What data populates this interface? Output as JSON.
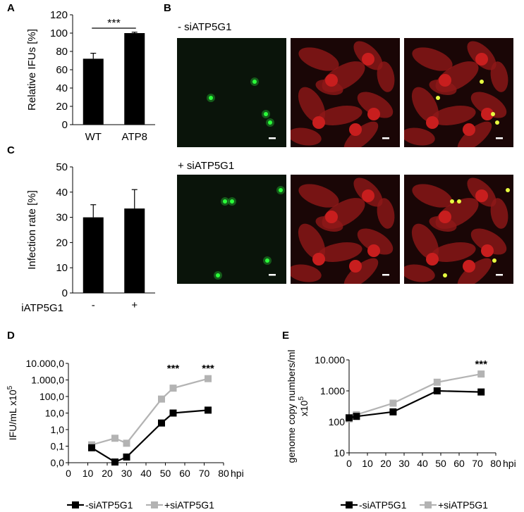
{
  "panels": {
    "A": "A",
    "B": "B",
    "C": "C",
    "D": "D",
    "E": "E"
  },
  "microscopy": {
    "row1_label": "- siATP5G1",
    "row2_label": "+ siATP5G1"
  },
  "colors": {
    "black": "#000000",
    "gray": "#b3b3b3",
    "green": "#2aff3a",
    "red": "#c81e1e"
  },
  "chart_data": [
    {
      "id": "A",
      "type": "bar",
      "categories": [
        "WT",
        "ATP8"
      ],
      "values": [
        72,
        100
      ],
      "errors": [
        6,
        1
      ],
      "ylabel": "Relative IFUs [%]",
      "xlabel": "",
      "ylim": [
        0,
        120
      ],
      "yticks": [
        0,
        20,
        40,
        60,
        80,
        100,
        120
      ],
      "annotations": [
        "***"
      ]
    },
    {
      "id": "C",
      "type": "bar",
      "categories": [
        "-",
        "+"
      ],
      "values": [
        30,
        33.5
      ],
      "errors": [
        5,
        7.5
      ],
      "ylabel": "Infection rate [%]",
      "xlabel": "siATP5G1",
      "ylim": [
        0,
        50
      ],
      "yticks": [
        0,
        10,
        20,
        30,
        40,
        50
      ]
    },
    {
      "id": "D",
      "type": "line",
      "scale": "log",
      "ylabel": "IFU/mL x10",
      "ylabel_sup": "5",
      "xlabel": "hpi",
      "xlim": [
        0,
        80
      ],
      "xticks": [
        0,
        10,
        20,
        30,
        40,
        50,
        60,
        70,
        80
      ],
      "ylim": [
        0.01,
        10000
      ],
      "ytick_labels": [
        "0,0",
        "0,1",
        "1,0",
        "10,0",
        "100,0",
        "1.000,0",
        "10.000,0"
      ],
      "ytick_values": [
        0.01,
        0.1,
        1,
        10,
        100,
        1000,
        10000
      ],
      "annotations": [
        {
          "x": 54,
          "text": "***"
        },
        {
          "x": 72,
          "text": "***"
        }
      ],
      "series": [
        {
          "name": "-siATP5G1",
          "color": "#000000",
          "x": [
            12,
            24,
            30,
            48,
            54,
            72
          ],
          "y": [
            0.08,
            0.011,
            0.022,
            2.5,
            10,
            15
          ]
        },
        {
          "name": "+siATP5G1",
          "color": "#b3b3b3",
          "x": [
            12,
            24,
            30,
            48,
            54,
            72
          ],
          "y": [
            0.12,
            0.3,
            0.15,
            70,
            320,
            1200
          ]
        }
      ]
    },
    {
      "id": "E",
      "type": "line",
      "scale": "log",
      "ylabel": "genome copy numbers/ml",
      "ylabel2": "x10",
      "ylabel_sup": "5",
      "xlabel": "hpi",
      "xlim": [
        0,
        80
      ],
      "xticks": [
        0,
        10,
        20,
        30,
        40,
        50,
        60,
        70,
        80
      ],
      "ylim": [
        10,
        10000
      ],
      "ytick_labels": [
        "10",
        "100",
        "1.000",
        "10.000"
      ],
      "ytick_values": [
        10,
        100,
        1000,
        10000
      ],
      "annotations": [
        {
          "x": 72,
          "text": "***"
        }
      ],
      "series": [
        {
          "name": "-siATP5G1",
          "color": "#000000",
          "x": [
            0,
            4,
            24,
            48,
            72
          ],
          "y": [
            135,
            150,
            210,
            1000,
            920
          ]
        },
        {
          "name": "+siATP5G1",
          "color": "#b3b3b3",
          "x": [
            0,
            4,
            24,
            48,
            72
          ],
          "y": [
            125,
            170,
            400,
            1900,
            3500
          ]
        }
      ]
    }
  ]
}
